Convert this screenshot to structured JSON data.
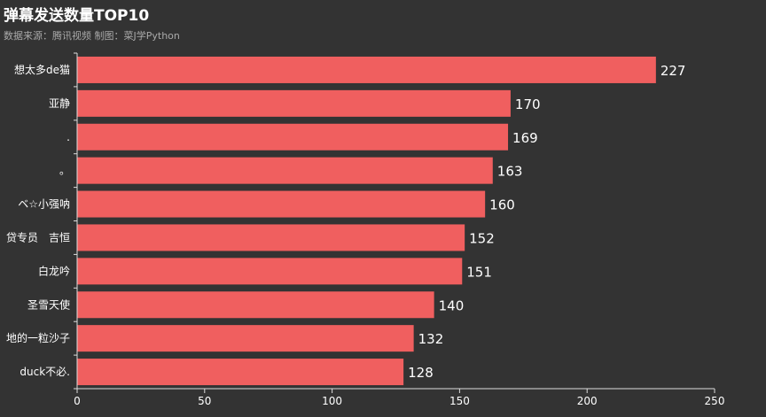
{
  "chart_data": {
    "type": "bar",
    "orientation": "horizontal",
    "title": "弹幕发送数量TOP10",
    "subtitle": "数据来源：腾讯视频 制图：菜J学Python",
    "categories": [
      "想太多de猫",
      "亚静",
      ".",
      "。",
      "ベ☆小强呐",
      "贷专员　吉恒",
      "白龙吟",
      "圣雪天使",
      "地的一粒沙子",
      "duck不必."
    ],
    "values": [
      227,
      170,
      169,
      163,
      160,
      152,
      151,
      140,
      132,
      128
    ],
    "xlim": [
      0,
      250
    ],
    "xticks": [
      0,
      50,
      100,
      150,
      200,
      250
    ],
    "bar_color": "#f05f5f",
    "background_color": "#333333",
    "grid": false
  }
}
